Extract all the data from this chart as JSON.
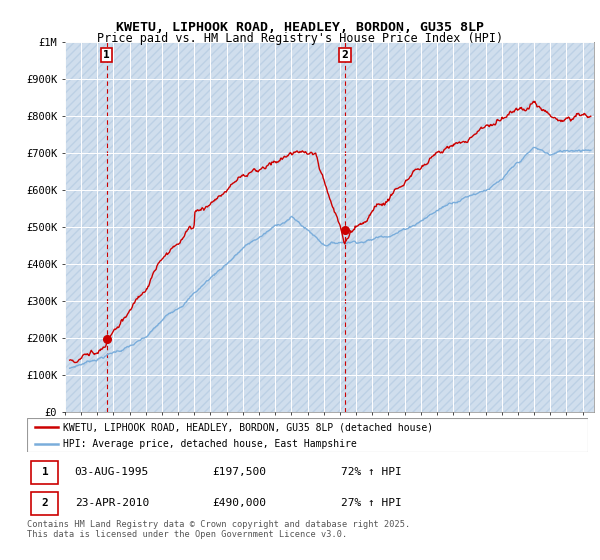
{
  "title": "KWETU, LIPHOOK ROAD, HEADLEY, BORDON, GU35 8LP",
  "subtitle": "Price paid vs. HM Land Registry's House Price Index (HPI)",
  "ylabel_ticks": [
    "£0",
    "£100K",
    "£200K",
    "£300K",
    "£400K",
    "£500K",
    "£600K",
    "£700K",
    "£800K",
    "£900K",
    "£1M"
  ],
  "ytick_vals": [
    0,
    100000,
    200000,
    300000,
    400000,
    500000,
    600000,
    700000,
    800000,
    900000,
    1000000
  ],
  "ylim": [
    0,
    1000000
  ],
  "xlim_start": 1993.3,
  "xlim_end": 2025.7,
  "transaction1": {
    "date": 1995.58,
    "price": 197500
  },
  "transaction2": {
    "date": 2010.31,
    "price": 490000
  },
  "property_color": "#cc0000",
  "hpi_color": "#7aaddb",
  "bg_color": "#dce9f5",
  "hatch_bg_color": "#c8d8e8",
  "grid_color": "#ffffff",
  "legend_label1": "KWETU, LIPHOOK ROAD, HEADLEY, BORDON, GU35 8LP (detached house)",
  "legend_label2": "HPI: Average price, detached house, East Hampshire",
  "table_row1": [
    "1",
    "03-AUG-1995",
    "£197,500",
    "72% ↑ HPI"
  ],
  "table_row2": [
    "2",
    "23-APR-2010",
    "£490,000",
    "27% ↑ HPI"
  ],
  "footer": "Contains HM Land Registry data © Crown copyright and database right 2025.\nThis data is licensed under the Open Government Licence v3.0.",
  "title_fontsize": 9.5,
  "subtitle_fontsize": 8.5,
  "tick_fontsize": 7.5,
  "dashed_line_color": "#cc0000"
}
